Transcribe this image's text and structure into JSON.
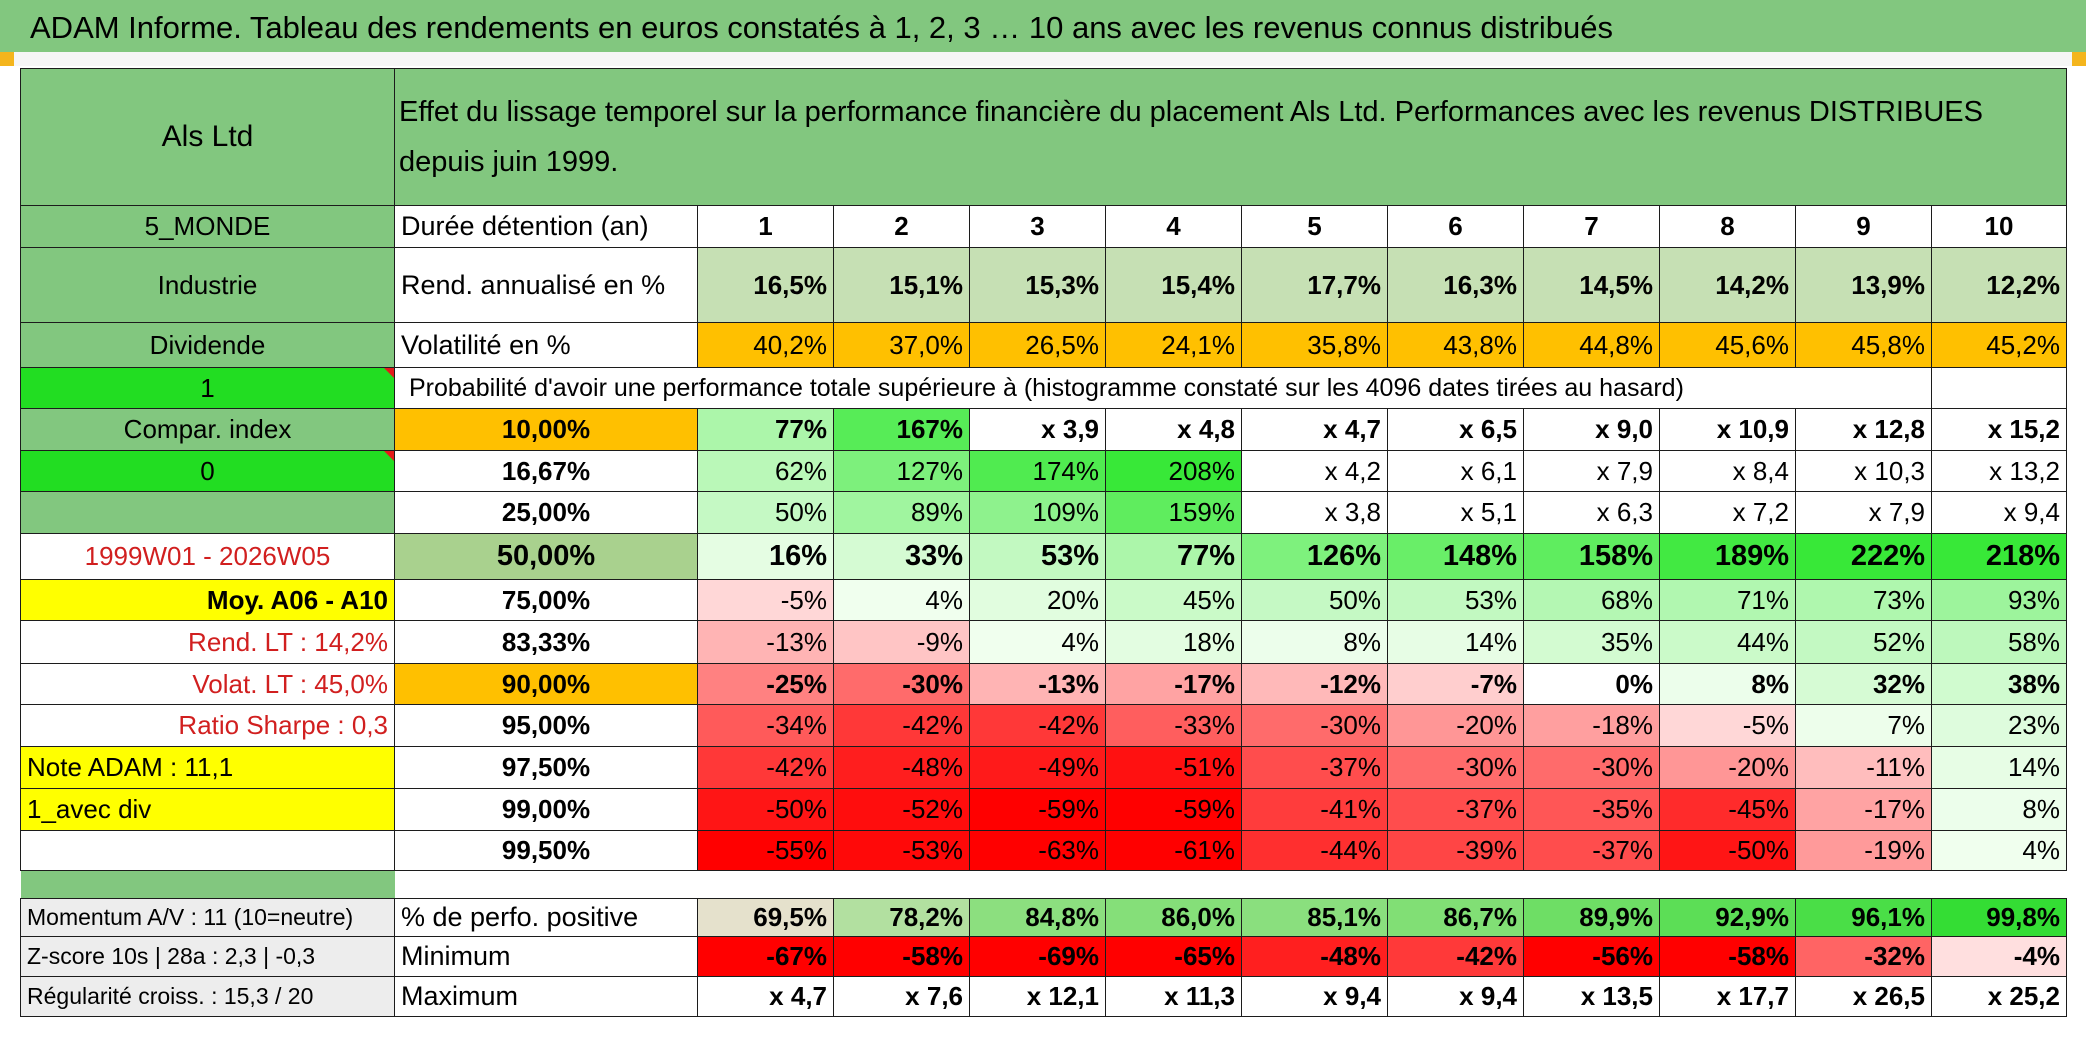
{
  "title": "ADAM Informe. Tableau des rendements en euros constatés à 1, 2, 3 … 10 ans avec les revenus connus distribués",
  "fund": {
    "name": "Als Ltd",
    "description": "Effet du lissage temporel sur la performance financière du placement Als Ltd. Performances avec les revenus DISTRIBUES depuis juin 1999.",
    "zone": "5_MONDE",
    "sector": "Industrie",
    "income_type": "Dividende",
    "flag_1": "1",
    "compare_label": "Compar. index",
    "flag_0": "0",
    "period": "1999W01 - 2026W05",
    "average_label": "Moy. A06 - A10",
    "rend_lt": "Rend. LT :   14,2%",
    "volat_lt": "Volat. LT :   45,0%",
    "sharpe": "Ratio Sharpe :    0,3",
    "note": "Note ADAM : 11,1",
    "mode": "1_avec div",
    "momentum": "Momentum A/V : 11 (10=neutre)",
    "zscore": "Z-score 10s | 28a : 2,3 | -0,3",
    "regularity": "Régularité croiss. : 15,3 / 20"
  },
  "table": {
    "duration_label": "Durée détention (an)",
    "years": [
      "1",
      "2",
      "3",
      "4",
      "5",
      "6",
      "7",
      "8",
      "9",
      "10"
    ],
    "rend_label": "Rend. annualisé en %",
    "rend_values": [
      "16,5%",
      "15,1%",
      "15,3%",
      "15,4%",
      "17,7%",
      "16,3%",
      "14,5%",
      "14,2%",
      "13,9%",
      "12,2%"
    ],
    "vol_label": "Volatilité en %",
    "vol_values": [
      "40,2%",
      "37,0%",
      "26,5%",
      "24,1%",
      "35,8%",
      "43,8%",
      "44,8%",
      "45,6%",
      "45,8%",
      "45,2%"
    ],
    "prob_label": "Probabilité d'avoir une performance totale supérieure à (histogramme constaté sur les 4096 dates tirées au hasard)",
    "quantiles": [
      {
        "level": "10,00%",
        "values": [
          "77%",
          "167%",
          "x 3,9",
          "x 4,8",
          "x 4,7",
          "x 6,5",
          "x 9,0",
          "x 10,9",
          "x 12,8",
          "x 15,2"
        ]
      },
      {
        "level": "16,67%",
        "values": [
          "62%",
          "127%",
          "174%",
          "208%",
          "x 4,2",
          "x 6,1",
          "x 7,9",
          "x 8,4",
          "x 10,3",
          "x 13,2"
        ]
      },
      {
        "level": "25,00%",
        "values": [
          "50%",
          "89%",
          "109%",
          "159%",
          "x 3,8",
          "x 5,1",
          "x 6,3",
          "x 7,2",
          "x 7,9",
          "x 9,4"
        ]
      },
      {
        "level": "50,00%",
        "values": [
          "16%",
          "33%",
          "53%",
          "77%",
          "126%",
          "148%",
          "158%",
          "189%",
          "222%",
          "218%"
        ]
      },
      {
        "level": "75,00%",
        "values": [
          "-5%",
          "4%",
          "20%",
          "45%",
          "50%",
          "53%",
          "68%",
          "71%",
          "73%",
          "93%"
        ]
      },
      {
        "level": "83,33%",
        "values": [
          "-13%",
          "-9%",
          "4%",
          "18%",
          "8%",
          "14%",
          "35%",
          "44%",
          "52%",
          "58%"
        ]
      },
      {
        "level": "90,00%",
        "values": [
          "-25%",
          "-30%",
          "-13%",
          "-17%",
          "-12%",
          "-7%",
          "0%",
          "8%",
          "32%",
          "38%"
        ]
      },
      {
        "level": "95,00%",
        "values": [
          "-34%",
          "-42%",
          "-42%",
          "-33%",
          "-30%",
          "-20%",
          "-18%",
          "-5%",
          "7%",
          "23%"
        ]
      },
      {
        "level": "97,50%",
        "values": [
          "-42%",
          "-48%",
          "-49%",
          "-51%",
          "-37%",
          "-30%",
          "-30%",
          "-20%",
          "-11%",
          "14%"
        ]
      },
      {
        "level": "99,00%",
        "values": [
          "-50%",
          "-52%",
          "-59%",
          "-59%",
          "-41%",
          "-37%",
          "-35%",
          "-45%",
          "-17%",
          "8%"
        ]
      },
      {
        "level": "99,50%",
        "values": [
          "-55%",
          "-53%",
          "-63%",
          "-61%",
          "-44%",
          "-39%",
          "-37%",
          "-50%",
          "-19%",
          "4%"
        ]
      }
    ],
    "positive_label": "% de perfo. positive",
    "positive_values": [
      "69,5%",
      "78,2%",
      "84,8%",
      "86,0%",
      "85,1%",
      "86,7%",
      "89,9%",
      "92,9%",
      "96,1%",
      "99,8%"
    ],
    "min_label": "Minimum",
    "min_values": [
      "-67%",
      "-58%",
      "-69%",
      "-65%",
      "-48%",
      "-42%",
      "-56%",
      "-58%",
      "-32%",
      "-4%"
    ],
    "max_label": "Maximum",
    "max_values": [
      "x 4,7",
      "x 7,6",
      "x 12,1",
      "x 11,3",
      "x 9,4",
      "x 9,4",
      "x 13,5",
      "x 17,7",
      "x 26,5",
      "x 25,2"
    ]
  },
  "colors": {
    "header_green": "#82c77f",
    "flag_green": "#22dd22",
    "yellow": "#ffff00",
    "orange": "#ffc000",
    "label_red": "#d11f1f"
  }
}
